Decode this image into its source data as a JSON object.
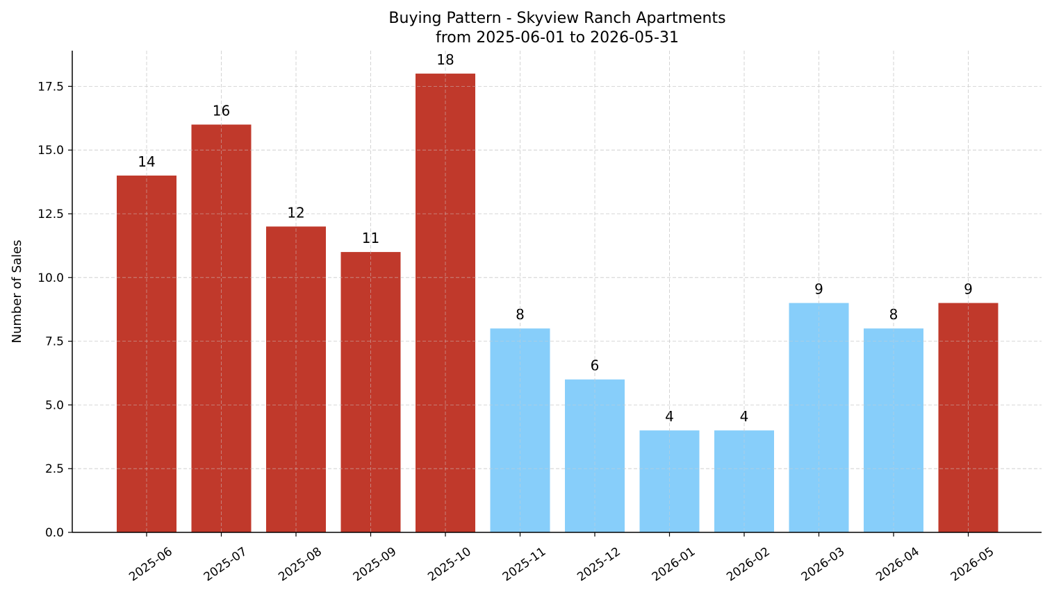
{
  "chart_data": {
    "type": "bar",
    "title": "Buying Pattern - Skyview Ranch Apartments",
    "subtitle": "from 2025-06-01 to 2026-05-31",
    "xlabel": "",
    "ylabel": "Number of Sales",
    "ylim": [
      0,
      18.9
    ],
    "yticks": [
      "0.0",
      "2.5",
      "5.0",
      "7.5",
      "10.0",
      "12.5",
      "15.0",
      "17.5"
    ],
    "ytick_values": [
      0,
      2.5,
      5,
      7.5,
      10,
      12.5,
      15,
      17.5
    ],
    "categories": [
      "2025-06",
      "2025-07",
      "2025-08",
      "2025-09",
      "2025-10",
      "2025-11",
      "2025-12",
      "2026-01",
      "2026-02",
      "2026-03",
      "2026-04",
      "2026-05"
    ],
    "values": [
      14,
      16,
      12,
      11,
      18,
      8,
      6,
      4,
      4,
      9,
      8,
      9
    ],
    "value_labels": [
      "14",
      "16",
      "12",
      "11",
      "18",
      "8",
      "6",
      "4",
      "4",
      "9",
      "8",
      "9"
    ],
    "bar_colors": [
      "#c0392b",
      "#c0392b",
      "#c0392b",
      "#c0392b",
      "#c0392b",
      "#87cefa",
      "#87cefa",
      "#87cefa",
      "#87cefa",
      "#87cefa",
      "#87cefa",
      "#c0392b"
    ],
    "grid": true,
    "legend": "none"
  }
}
